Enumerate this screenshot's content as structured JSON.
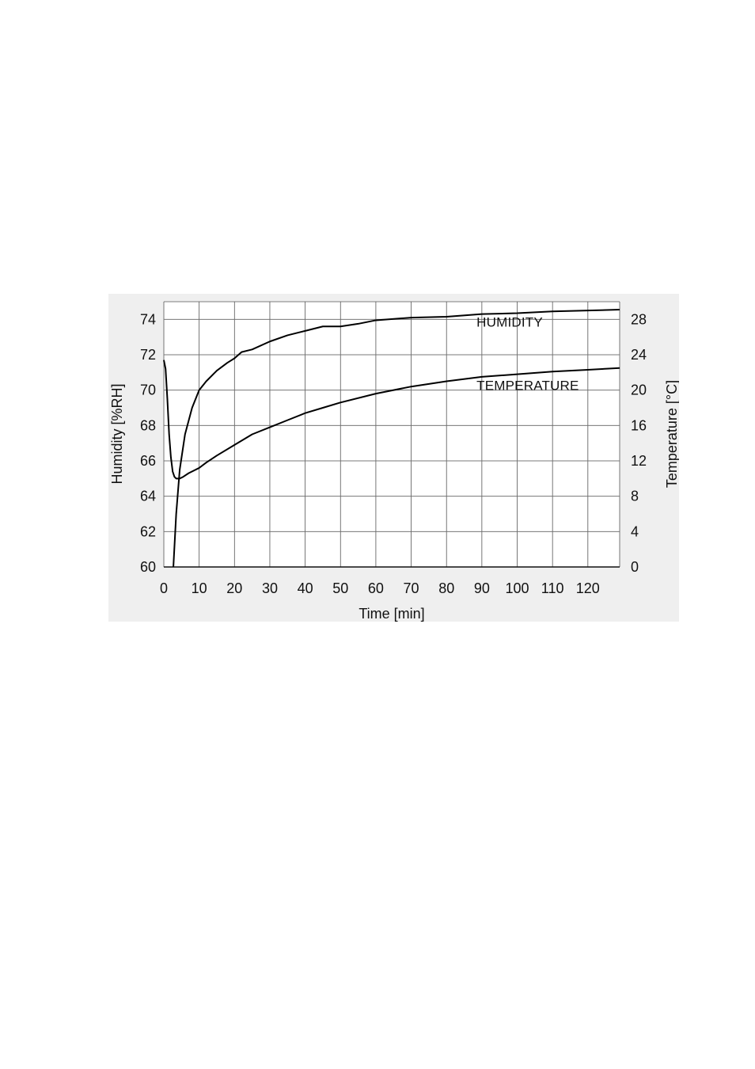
{
  "chart_data": {
    "type": "line",
    "title": "",
    "xlabel": "Time [min]",
    "ylabel": "Humidity [%RH]",
    "y2label": "Temperature [°C]",
    "xlim": [
      0,
      129
    ],
    "ylim": [
      60,
      75
    ],
    "y2lim": [
      0,
      30
    ],
    "x_ticks": [
      0,
      10,
      20,
      30,
      40,
      50,
      60,
      70,
      80,
      90,
      100,
      110,
      120
    ],
    "y_ticks": [
      60,
      62,
      64,
      66,
      68,
      70,
      72,
      74
    ],
    "y2_ticks": [
      0,
      4,
      8,
      12,
      16,
      20,
      24,
      28
    ],
    "grid": true,
    "series": [
      {
        "name": "HUMIDITY",
        "axis": "right",
        "x": [
          2.7,
          3.5,
          4.5,
          6,
          8,
          10,
          12,
          15,
          18,
          20,
          22,
          25,
          30,
          35,
          40,
          45,
          50,
          55,
          60,
          70,
          80,
          90,
          100,
          110,
          120,
          129
        ],
        "values": [
          0,
          6,
          11,
          15,
          18,
          20,
          21,
          22.2,
          23.1,
          23.6,
          24.3,
          24.6,
          25.5,
          26.2,
          26.7,
          27.2,
          27.2,
          27.5,
          27.9,
          28.2,
          28.3,
          28.6,
          28.7,
          28.9,
          29.0,
          29.1
        ]
      },
      {
        "name": "TEMPERATURE",
        "axis": "left",
        "x": [
          0,
          0.5,
          1,
          1.5,
          2,
          2.5,
          3,
          3.5,
          4.5,
          5.5,
          7,
          10,
          12,
          15,
          20,
          25,
          30,
          35,
          40,
          45,
          50,
          60,
          70,
          80,
          90,
          100,
          110,
          120,
          129
        ],
        "values": [
          71.7,
          71.2,
          69.5,
          67.5,
          66.2,
          65.4,
          65.1,
          65.0,
          65.0,
          65.1,
          65.3,
          65.6,
          65.9,
          66.3,
          66.9,
          67.5,
          67.9,
          68.3,
          68.7,
          69.0,
          69.3,
          69.8,
          70.2,
          70.5,
          70.75,
          70.9,
          71.05,
          71.15,
          71.25
        ]
      }
    ],
    "annotations": [
      {
        "text": "HUMIDITY",
        "x": 88.5,
        "y": 73.6
      },
      {
        "text": "TEMPERATURE",
        "x": 88.5,
        "y": 70.0
      }
    ]
  }
}
